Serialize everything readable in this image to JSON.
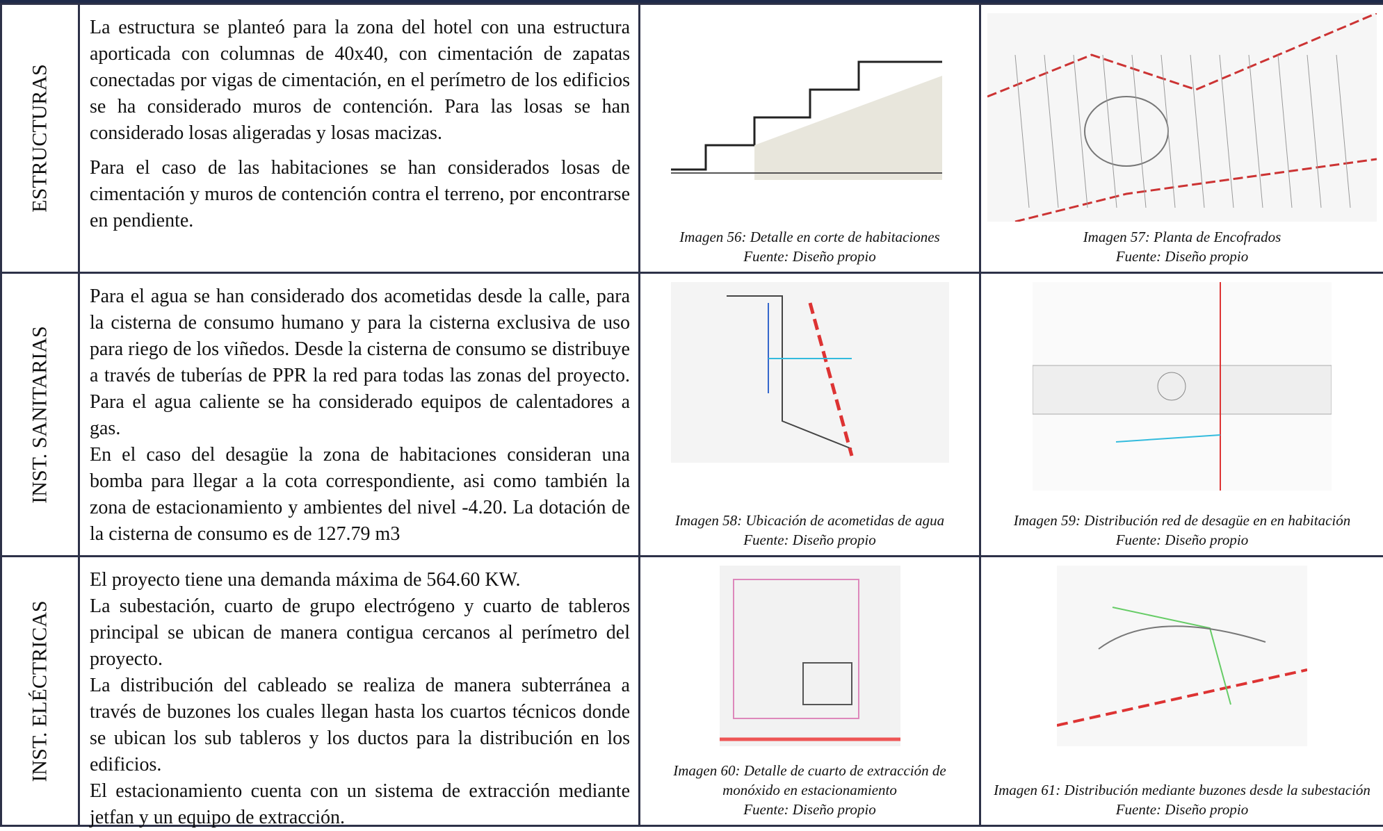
{
  "table": {
    "rows": [
      {
        "label": "ESTRUCTURAS",
        "paragraphs": [
          "La estructura se planteó para la zona del hotel con una estructura aporticada con columnas de 40x40, con cimentación de zapatas conectadas por vigas de cimentación, en el perímetro de los edificios se ha considerado muros de contención. Para las losas se han considerado losas aligeradas y losas macizas.",
          "Para el caso de las habitaciones se han considerados losas de cimentación y muros de contención contra el terreno, por encontrarse en pendiente."
        ],
        "figures": [
          {
            "caption": "Imagen 56:  Detalle en corte de habitaciones",
            "source": "Fuente: Diseño propio"
          },
          {
            "caption": "Imagen 57:  Planta de Encofrados",
            "source": "Fuente: Diseño propio"
          }
        ]
      },
      {
        "label": "INST. SANITARIAS",
        "paragraphs": [
          "Para el agua se han considerado dos acometidas desde la calle, para la cisterna de consumo humano y para la cisterna exclusiva de uso para riego de los viñedos. Desde la cisterna de consumo se distribuye a través de tuberías de PPR la red para todas las zonas del proyecto. Para el agua caliente se ha considerado equipos de calentadores a gas.",
          "En el caso del desagüe la zona de habitaciones consideran una bomba para llegar a la cota correspondiente, asi como también la zona de estacionamiento y ambientes del nivel -4.20. La dotación de la cisterna de consumo es de 127.79 m3"
        ],
        "figures": [
          {
            "caption": "Imagen 58:  Ubicación de acometidas de agua",
            "source": "Fuente: Diseño propio"
          },
          {
            "caption": "Imagen 59:  Distribución red de desagüe en  en habitación",
            "source": "Fuente: Diseño propio"
          }
        ]
      },
      {
        "label": "INST. ELÉCTRICAS",
        "paragraphs": [
          "El proyecto tiene una demanda máxima de 564.60 KW.",
          "La subestación, cuarto de grupo electrógeno y cuarto de tableros principal se ubican de manera contigua cercanos al perímetro del proyecto.",
          "La distribución del cableado se realiza de manera subterránea a través de buzones los cuales llegan hasta los cuartos técnicos donde se ubican los sub tableros y los ductos para la distribución en los edificios.",
          "El estacionamiento cuenta con un sistema de extracción mediante jetfan y un equipo de extracción."
        ],
        "figures": [
          {
            "caption": "Imagen 60:  Detalle de cuarto de extracción de monóxido en estacionamiento",
            "source": "Fuente: Diseño propio"
          },
          {
            "caption": "Imagen 61:  Distribución mediante buzones desde la subestación",
            "source": "Fuente: Diseño propio"
          }
        ]
      }
    ]
  }
}
